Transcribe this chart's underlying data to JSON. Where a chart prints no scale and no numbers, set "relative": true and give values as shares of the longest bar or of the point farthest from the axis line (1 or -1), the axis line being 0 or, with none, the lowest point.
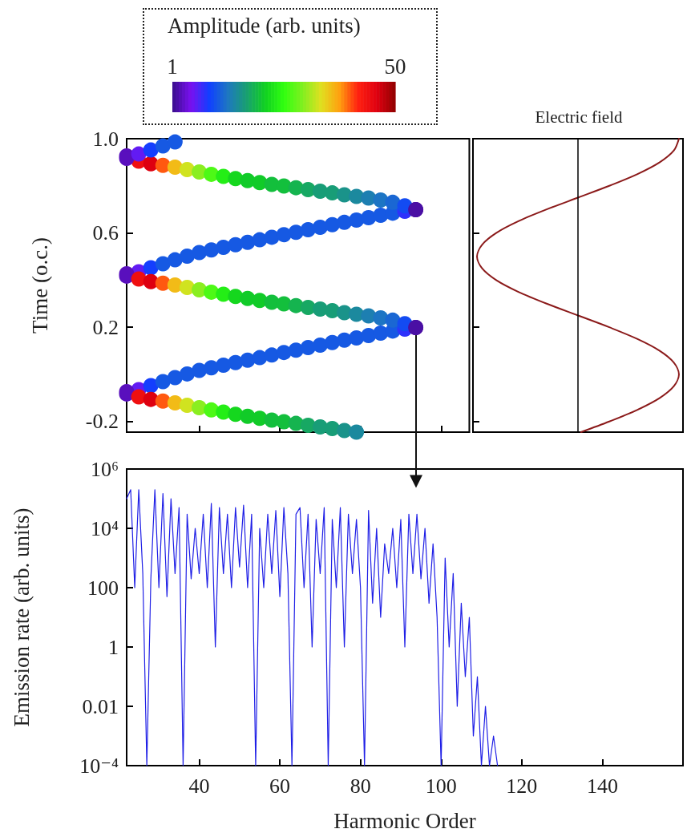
{
  "chart_data": [
    {
      "type": "scatter",
      "ylabel": "Time (o.c.)",
      "clabel": "Amplitude (arb. units)",
      "clim": [
        1,
        50
      ],
      "cticks": [
        1,
        50
      ],
      "marker": "circle",
      "xlim": [
        22,
        107
      ],
      "xticks": [
        40,
        60,
        80,
        100
      ],
      "ylim": [
        -0.245,
        1.0
      ],
      "yticks": [
        {
          "value": 1,
          "label": "1.0"
        },
        0.6,
        0.2,
        -0.2
      ],
      "tick_labels": "y",
      "x": [
        22,
        25,
        28,
        31,
        34,
        37,
        40,
        43,
        46,
        49,
        52,
        55,
        58,
        61,
        64,
        67,
        70,
        73,
        76,
        79,
        82,
        85,
        88,
        91,
        93.7,
        22,
        25,
        28,
        31,
        34,
        37,
        40,
        43,
        46,
        49,
        52,
        55,
        58,
        61,
        64,
        67,
        70,
        73,
        76,
        79,
        82,
        85,
        88,
        91,
        93.7,
        22,
        25,
        28,
        31,
        34,
        37,
        40,
        43,
        46,
        49,
        52,
        55,
        58,
        61,
        64,
        67,
        70,
        73,
        76,
        79,
        82,
        85,
        88,
        91,
        93.7,
        22,
        25,
        28,
        31,
        34,
        37,
        40,
        43,
        46,
        49,
        52,
        55,
        58,
        61,
        64,
        67,
        70,
        73,
        76,
        79,
        82,
        85,
        88,
        91,
        93.7,
        22,
        25,
        28,
        31,
        34,
        22,
        25,
        28,
        31,
        34,
        37,
        40,
        43,
        46,
        49,
        52,
        55,
        58,
        61,
        64,
        67,
        70,
        73,
        76,
        79
      ],
      "values": [
        -0.083,
        -0.065,
        -0.048,
        -0.031,
        -0.014,
        0.002,
        0.017,
        0.028,
        0.039,
        0.05,
        0.06,
        0.071,
        0.082,
        0.093,
        0.103,
        0.114,
        0.124,
        0.135,
        0.145,
        0.155,
        0.165,
        0.175,
        0.184,
        0.192,
        0.199,
        0.417,
        0.435,
        0.452,
        0.469,
        0.486,
        0.502,
        0.517,
        0.528,
        0.539,
        0.55,
        0.56,
        0.571,
        0.582,
        0.593,
        0.603,
        0.614,
        0.624,
        0.635,
        0.645,
        0.655,
        0.665,
        0.675,
        0.684,
        0.692,
        0.699,
        0.427,
        0.405,
        0.394,
        0.387,
        0.379,
        0.369,
        0.359,
        0.349,
        0.34,
        0.331,
        0.322,
        0.314,
        0.306,
        0.299,
        0.292,
        0.284,
        0.277,
        0.27,
        0.262,
        0.255,
        0.248,
        0.24,
        0.23,
        0.215,
        0.199,
        0.927,
        0.905,
        0.894,
        0.887,
        0.879,
        0.869,
        0.859,
        0.849,
        0.84,
        0.831,
        0.822,
        0.814,
        0.806,
        0.799,
        0.792,
        0.784,
        0.777,
        0.77,
        0.762,
        0.755,
        0.748,
        0.74,
        0.73,
        0.715,
        0.699,
        0.917,
        0.935,
        0.952,
        0.969,
        0.986,
        -0.073,
        -0.095,
        -0.106,
        -0.113,
        -0.121,
        -0.131,
        -0.141,
        -0.151,
        -0.16,
        -0.169,
        -0.178,
        -0.186,
        -0.194,
        -0.201,
        -0.208,
        -0.216,
        -0.223,
        -0.23,
        -0.238,
        -0.245
      ],
      "cvalues": [
        3,
        6,
        9,
        11,
        11,
        11,
        11,
        11,
        11,
        11,
        11,
        11,
        11,
        11,
        11,
        11,
        11,
        11,
        11,
        11,
        11,
        11,
        11,
        8,
        2,
        3,
        6,
        9,
        11,
        11,
        11,
        11,
        11,
        11,
        11,
        11,
        11,
        11,
        11,
        11,
        11,
        11,
        11,
        11,
        11,
        11,
        11,
        11,
        8,
        2,
        3,
        44,
        46,
        40,
        36,
        33,
        30,
        27,
        24,
        22,
        21,
        21,
        20,
        20,
        19,
        18,
        17,
        17,
        16,
        15,
        14,
        13,
        12,
        10,
        2,
        3,
        44,
        46,
        40,
        36,
        33,
        30,
        27,
        24,
        22,
        21,
        21,
        20,
        20,
        19,
        18,
        17,
        17,
        16,
        15,
        14,
        13,
        12,
        10,
        2,
        3,
        6,
        9,
        11,
        11,
        3,
        44,
        46,
        40,
        36,
        33,
        30,
        27,
        24,
        22,
        21,
        21,
        20,
        20,
        19,
        18,
        17,
        17,
        16,
        15
      ]
    },
    {
      "type": "line",
      "title": "Electric field",
      "orientation": "horizontal",
      "relative": true,
      "color": "#8b1a1a",
      "ylim": [
        -0.245,
        1.0
      ],
      "yticks": [
        {
          "value": 1,
          "label": null
        },
        {
          "value": 0.6,
          "label": null
        },
        {
          "value": 0.2,
          "label": null
        },
        {
          "value": -0.2,
          "label": null
        }
      ],
      "tick_labels": false,
      "x": [
        -0.245,
        -0.2,
        -0.15,
        -0.1,
        -0.05,
        0,
        0.05,
        0.1,
        0.15,
        0.2,
        0.25,
        0.3,
        0.35,
        0.4,
        0.45,
        0.5,
        0.55,
        0.6,
        0.65,
        0.7,
        0.75,
        0.8,
        0.85,
        0.9,
        0.95,
        1.0
      ],
      "values": [
        0.03,
        0.31,
        0.59,
        0.81,
        0.95,
        1,
        0.95,
        0.81,
        0.59,
        0.31,
        0,
        -0.31,
        -0.59,
        -0.81,
        -0.95,
        -1,
        -0.95,
        -0.81,
        -0.59,
        -0.31,
        0,
        0.31,
        0.59,
        0.81,
        0.95,
        1
      ],
      "ref_lines": [
        {
          "axis": "x",
          "value": 0
        }
      ]
    },
    {
      "type": "line",
      "xlabel": "Harmonic Order",
      "ylabel": "Emission rate (arb. units)",
      "log": "y",
      "color": "#1f1fe6",
      "xlim": [
        22,
        160
      ],
      "xticks": [
        40,
        60,
        80,
        100,
        120,
        140
      ],
      "ylim": [
        0.0001,
        1000000
      ],
      "yticks": [
        {
          "value": 1000000,
          "label": "10⁶"
        },
        {
          "value": 10000,
          "label": "10⁴"
        },
        100,
        1,
        0.01,
        {
          "value": 0.0001,
          "label": "10⁻⁴"
        }
      ],
      "x": [
        22,
        23,
        24,
        25,
        26,
        27,
        28,
        29,
        30,
        31,
        32,
        33,
        34,
        35,
        36,
        37,
        38,
        39,
        40,
        41,
        42,
        43,
        44,
        45,
        46,
        47,
        48,
        49,
        50,
        51,
        52,
        53,
        54,
        55,
        56,
        57,
        58,
        59,
        60,
        61,
        62,
        63,
        64,
        65,
        66,
        67,
        68,
        69,
        70,
        71,
        72,
        73,
        74,
        75,
        76,
        77,
        78,
        79,
        80,
        81,
        82,
        83,
        84,
        85,
        86,
        87,
        88,
        89,
        90,
        91,
        92,
        93,
        94,
        95,
        96,
        97,
        98,
        99,
        100,
        101,
        102,
        103,
        104,
        105,
        106,
        107,
        108,
        109,
        110,
        111,
        112,
        113,
        114
      ],
      "values": [
        100000,
        200000,
        100,
        200000,
        300,
        0.0001,
        200,
        200000,
        100,
        150000,
        50,
        100000,
        300,
        50000,
        0.0001,
        30000,
        200,
        10000,
        300,
        30000,
        100,
        70000,
        1,
        50000,
        300,
        30000,
        100,
        50000,
        500,
        60000,
        100,
        30000,
        0.0001,
        10000,
        100,
        30000,
        300,
        40000,
        50,
        50000,
        300,
        0.0001,
        30000,
        50000,
        100,
        30000,
        1,
        20000,
        300,
        50000,
        0.0001,
        20000,
        100,
        50000,
        1,
        30000,
        300,
        20000,
        100,
        0.0001,
        40000,
        30,
        10000,
        10,
        3000,
        300,
        10000,
        100,
        20000,
        1,
        30000,
        300,
        30000,
        200,
        10000,
        30,
        3000,
        10,
        0.0001,
        1000,
        1,
        300,
        0.01,
        30,
        0.1,
        10,
        0.001,
        0.1,
        0.0001,
        0.01,
        0.0001,
        0.001,
        0.0001
      ]
    }
  ]
}
